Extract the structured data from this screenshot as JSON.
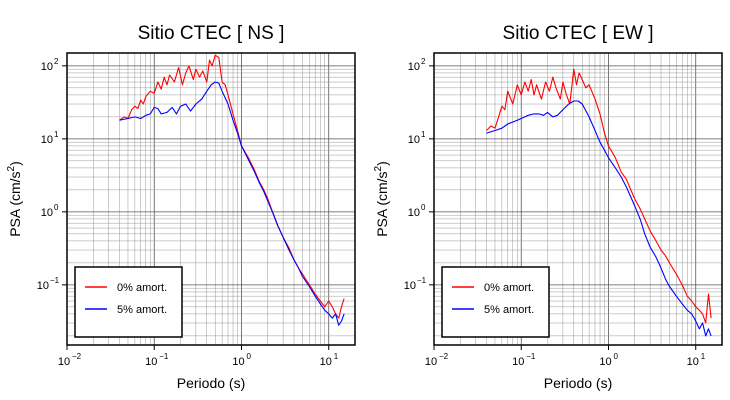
{
  "chart_data": [
    {
      "type": "line",
      "title": "Sitio CTEC [ NS ]",
      "xlabel": "Periodo (s)",
      "ylabel": "PSA (cm/s",
      "ylabel_sup": "2",
      "ylabel_close": ")",
      "x_scale": "log",
      "y_scale": "log",
      "xlim": [
        0.01,
        20
      ],
      "ylim": [
        0.015,
        150
      ],
      "grid": true,
      "legend_position": "bottom-left",
      "x_ticks": [
        {
          "value": 0.01,
          "base": "10",
          "exp": "−2"
        },
        {
          "value": 0.1,
          "base": "10",
          "exp": "−1"
        },
        {
          "value": 1,
          "base": "10",
          "exp": "0"
        },
        {
          "value": 10,
          "base": "10",
          "exp": "1"
        }
      ],
      "y_ticks": [
        {
          "value": 0.1,
          "base": "10",
          "exp": "−1"
        },
        {
          "value": 1,
          "base": "10",
          "exp": "0"
        },
        {
          "value": 10,
          "base": "10",
          "exp": "1"
        },
        {
          "value": 100,
          "base": "10",
          "exp": "2"
        }
      ],
      "series": [
        {
          "name": "0% amort.",
          "color": "#ff0000",
          "x": [
            0.04,
            0.045,
            0.05,
            0.055,
            0.06,
            0.065,
            0.07,
            0.075,
            0.08,
            0.09,
            0.1,
            0.11,
            0.12,
            0.13,
            0.14,
            0.15,
            0.17,
            0.19,
            0.21,
            0.23,
            0.25,
            0.28,
            0.3,
            0.33,
            0.36,
            0.4,
            0.43,
            0.46,
            0.5,
            0.55,
            0.6,
            0.65,
            0.7,
            0.8,
            0.9,
            1.0,
            1.2,
            1.4,
            1.6,
            1.8,
            2.0,
            2.3,
            2.6,
            3.0,
            3.5,
            4.0,
            4.5,
            5.0,
            6.0,
            7.0,
            8.0,
            9.0,
            10.0,
            11.0,
            12.0,
            13.0,
            14.0,
            15.0
          ],
          "y": [
            18,
            20,
            19,
            25,
            28,
            26,
            34,
            30,
            38,
            45,
            42,
            60,
            48,
            70,
            55,
            75,
            60,
            95,
            55,
            80,
            100,
            65,
            90,
            70,
            85,
            60,
            120,
            100,
            140,
            130,
            60,
            55,
            40,
            22,
            13,
            8,
            5.5,
            3.8,
            2.6,
            2.0,
            1.5,
            0.95,
            0.65,
            0.45,
            0.32,
            0.22,
            0.17,
            0.14,
            0.1,
            0.075,
            0.06,
            0.05,
            0.06,
            0.05,
            0.04,
            0.035,
            0.05,
            0.065
          ]
        },
        {
          "name": "5% amort.",
          "color": "#0000ff",
          "x": [
            0.04,
            0.05,
            0.06,
            0.07,
            0.08,
            0.09,
            0.1,
            0.11,
            0.12,
            0.14,
            0.16,
            0.18,
            0.2,
            0.23,
            0.26,
            0.3,
            0.35,
            0.4,
            0.45,
            0.5,
            0.55,
            0.6,
            0.7,
            0.8,
            0.9,
            1.0,
            1.2,
            1.4,
            1.6,
            1.8,
            2.0,
            2.3,
            2.6,
            3.0,
            3.5,
            4.0,
            4.5,
            5.0,
            6.0,
            7.0,
            8.0,
            9.0,
            10.0,
            11.0,
            12.0,
            13.0,
            14.0,
            15.0
          ],
          "y": [
            18,
            19,
            20,
            19,
            21,
            22,
            27,
            26,
            22,
            23,
            27,
            22,
            28,
            30,
            24,
            30,
            35,
            45,
            55,
            60,
            58,
            45,
            30,
            18,
            12,
            8,
            5.2,
            3.6,
            2.5,
            1.9,
            1.4,
            0.95,
            0.65,
            0.45,
            0.3,
            0.22,
            0.17,
            0.13,
            0.095,
            0.07,
            0.055,
            0.045,
            0.04,
            0.035,
            0.04,
            0.028,
            0.032,
            0.04
          ]
        }
      ]
    },
    {
      "type": "line",
      "title": "Sitio CTEC [ EW ]",
      "xlabel": "Periodo (s)",
      "ylabel": "PSA (cm/s",
      "ylabel_sup": "2",
      "ylabel_close": ")",
      "x_scale": "log",
      "y_scale": "log",
      "xlim": [
        0.01,
        20
      ],
      "ylim": [
        0.015,
        150
      ],
      "grid": true,
      "legend_position": "bottom-left",
      "x_ticks": [
        {
          "value": 0.01,
          "base": "10",
          "exp": "−2"
        },
        {
          "value": 0.1,
          "base": "10",
          "exp": "−1"
        },
        {
          "value": 1,
          "base": "10",
          "exp": "0"
        },
        {
          "value": 10,
          "base": "10",
          "exp": "1"
        }
      ],
      "y_ticks": [
        {
          "value": 0.1,
          "base": "10",
          "exp": "−1"
        },
        {
          "value": 1,
          "base": "10",
          "exp": "0"
        },
        {
          "value": 10,
          "base": "10",
          "exp": "1"
        },
        {
          "value": 100,
          "base": "10",
          "exp": "2"
        }
      ],
      "series": [
        {
          "name": "0% amort.",
          "color": "#ff0000",
          "x": [
            0.04,
            0.045,
            0.05,
            0.055,
            0.06,
            0.065,
            0.07,
            0.08,
            0.09,
            0.1,
            0.11,
            0.12,
            0.13,
            0.14,
            0.15,
            0.17,
            0.19,
            0.21,
            0.23,
            0.25,
            0.28,
            0.3,
            0.33,
            0.36,
            0.4,
            0.43,
            0.46,
            0.5,
            0.55,
            0.6,
            0.7,
            0.8,
            0.9,
            1.0,
            1.2,
            1.4,
            1.6,
            1.8,
            2.0,
            2.3,
            2.6,
            3.0,
            3.5,
            4.0,
            4.5,
            5.0,
            6.0,
            7.0,
            8.0,
            9.0,
            10.0,
            11.0,
            12.0,
            13.0,
            14.0,
            15.0
          ],
          "y": [
            13,
            15,
            14,
            20,
            28,
            25,
            45,
            30,
            55,
            40,
            60,
            45,
            65,
            40,
            55,
            35,
            60,
            45,
            70,
            50,
            35,
            60,
            40,
            30,
            90,
            55,
            80,
            65,
            50,
            55,
            35,
            22,
            12,
            8,
            5.5,
            3.5,
            2.8,
            2.0,
            1.5,
            1.1,
            0.8,
            0.55,
            0.4,
            0.3,
            0.25,
            0.2,
            0.14,
            0.1,
            0.07,
            0.06,
            0.05,
            0.045,
            0.04,
            0.03,
            0.075,
            0.035
          ]
        },
        {
          "name": "5% amort.",
          "color": "#0000ff",
          "x": [
            0.04,
            0.05,
            0.06,
            0.07,
            0.08,
            0.09,
            0.1,
            0.12,
            0.14,
            0.16,
            0.18,
            0.2,
            0.23,
            0.26,
            0.3,
            0.35,
            0.4,
            0.45,
            0.5,
            0.6,
            0.7,
            0.8,
            0.9,
            1.0,
            1.2,
            1.4,
            1.6,
            1.8,
            2.0,
            2.3,
            2.6,
            3.0,
            3.5,
            4.0,
            4.5,
            5.0,
            6.0,
            7.0,
            8.0,
            9.0,
            10.0,
            11.0,
            12.0,
            13.0,
            14.0,
            15.0
          ],
          "y": [
            12,
            13,
            14,
            16,
            17,
            18,
            19,
            21,
            22,
            22,
            21,
            23,
            20,
            21,
            25,
            30,
            33,
            33,
            30,
            20,
            13,
            9,
            7,
            5.5,
            4.0,
            3.0,
            2.2,
            1.6,
            1.2,
            0.8,
            0.5,
            0.33,
            0.24,
            0.17,
            0.12,
            0.095,
            0.07,
            0.055,
            0.045,
            0.04,
            0.032,
            0.025,
            0.03,
            0.02,
            0.025,
            0.02
          ]
        }
      ]
    }
  ]
}
